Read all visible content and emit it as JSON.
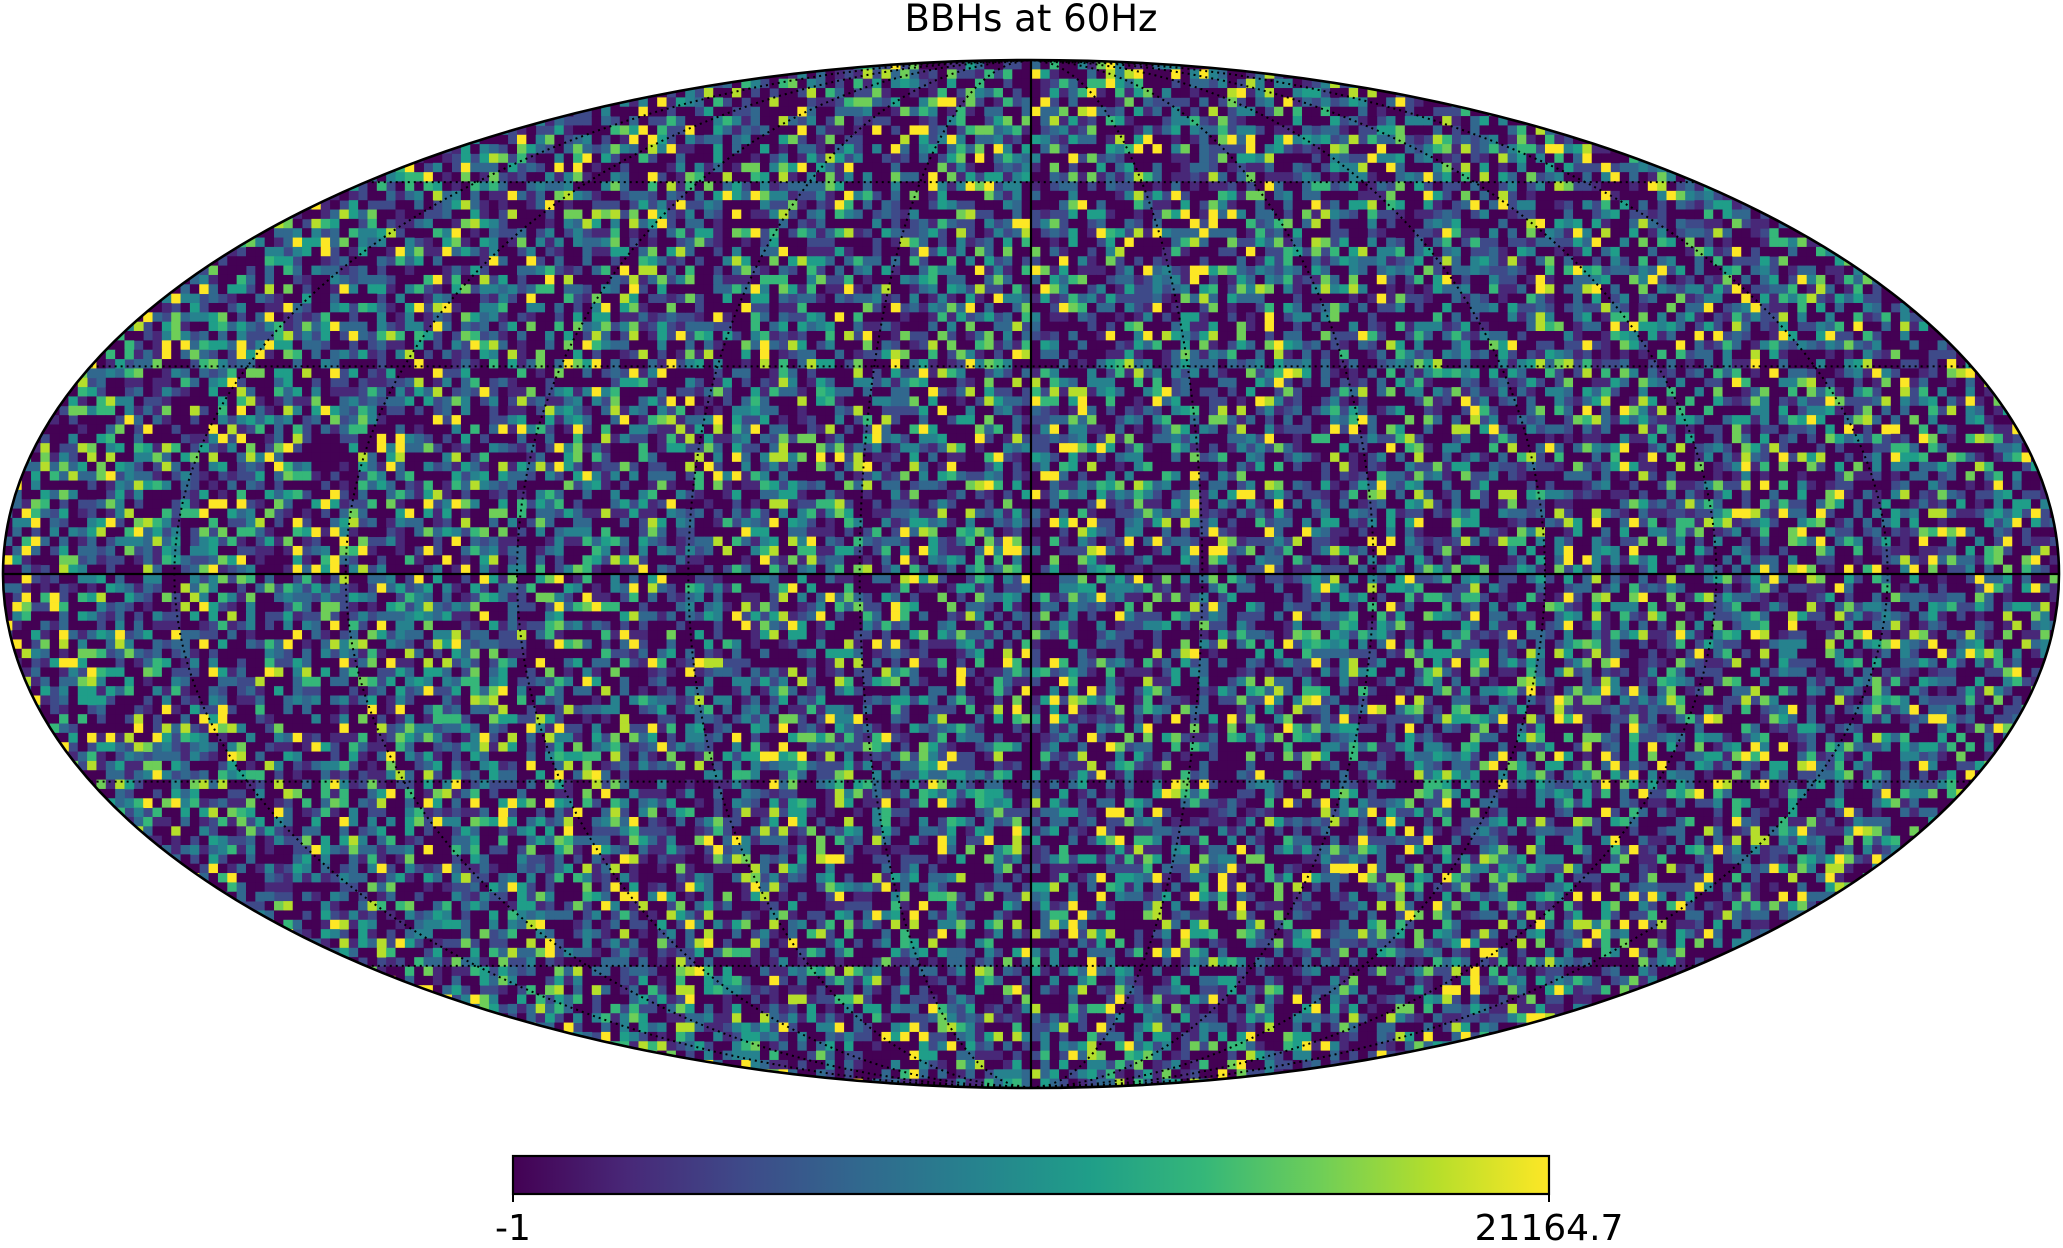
{
  "chart_data": {
    "type": "heatmap",
    "projection": "mollweide",
    "title": "BBHs at 60Hz",
    "grid": true,
    "colormap": {
      "name": "viridis",
      "stops": [
        "#440154",
        "#482878",
        "#3e4a89",
        "#31688e",
        "#26828e",
        "#1f9e89",
        "#35b779",
        "#6ece58",
        "#b5de2b",
        "#fde725"
      ]
    },
    "colorbar": {
      "min": -1,
      "max": 21164.7,
      "min_label": "-1",
      "max_label": "21164.7",
      "orientation": "horizontal"
    },
    "value_distribution": {
      "min": -1,
      "max": 21164.7,
      "dominant_fraction_low": 0.45,
      "description_visible": false
    },
    "graticule": {
      "latitudes_deg": [
        -60,
        -30,
        30,
        60
      ],
      "longitudes_deg": [
        -150,
        -120,
        -90,
        -60,
        -30,
        30,
        60,
        90,
        120,
        150
      ],
      "solid_meridian_deg": 0,
      "solid_parallel_deg": 0
    }
  },
  "colors": {
    "background": "#ffffff",
    "outline": "#000000"
  }
}
